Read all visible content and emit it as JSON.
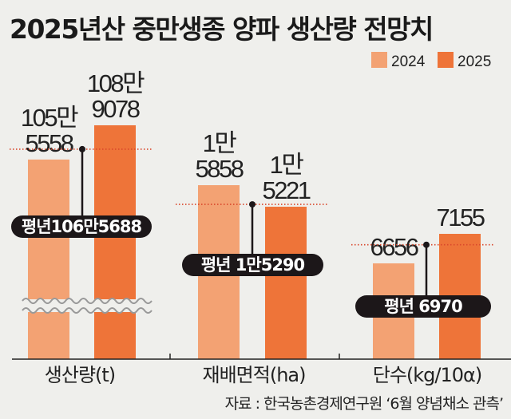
{
  "chart_data": {
    "type": "bar",
    "title": "2025년산 중만생종 양파 생산량 전망치",
    "legend": [
      "2024",
      "2025"
    ],
    "legend_position": "top-right",
    "colors": {
      "2024": "#f3a273",
      "2025": "#ee7439",
      "average": "#1c1719"
    },
    "categories": [
      "생산량(t)",
      "재배면적(ha)",
      "단수(kg/10α)"
    ],
    "series": [
      {
        "name": "2024",
        "values": [
          1055558,
          15858,
          6656
        ],
        "labels": [
          [
            "105만",
            "5558"
          ],
          [
            "1만",
            "5858"
          ],
          [
            "6656"
          ]
        ]
      },
      {
        "name": "2025",
        "values": [
          1089078,
          15221,
          7155
        ],
        "labels": [
          [
            "108만",
            "9078"
          ],
          [
            "1만",
            "5221"
          ],
          [
            "7155"
          ]
        ]
      }
    ],
    "average": {
      "values": [
        1065688,
        15290,
        6970
      ],
      "labels": [
        "평년106만5688",
        "평년 1만5290",
        "평년 6970"
      ]
    },
    "axis_break": "생산량(t)",
    "source": "자료 : 한국농촌경제연구원 ‘6월 양념채소 관측’"
  }
}
